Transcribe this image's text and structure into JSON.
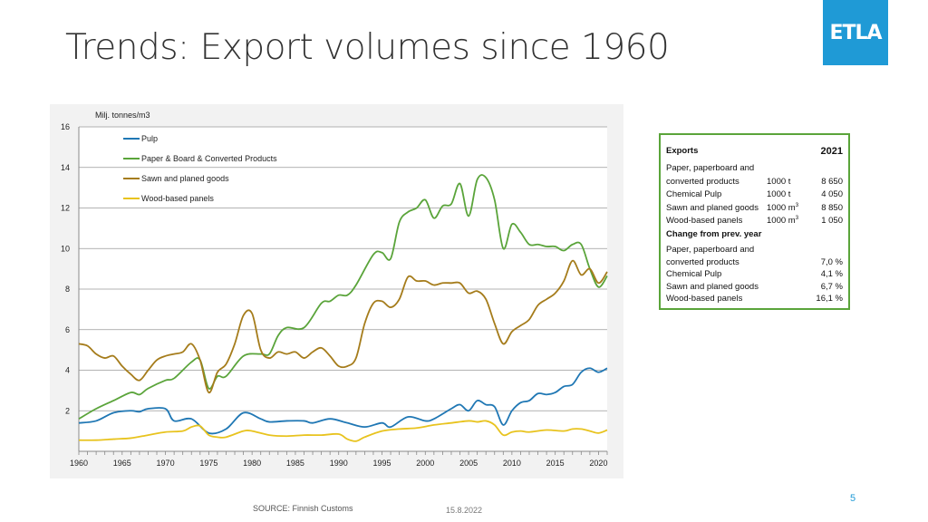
{
  "slide": {
    "title": "Trends: Export volumes since 1960",
    "logo": "ETLA",
    "source": "SOURCE: Finnish Customs",
    "date": "15.8.2022",
    "page": "5"
  },
  "chart_data": {
    "type": "line",
    "title": "",
    "ylabel": "Milj. tonnes/m3",
    "xlabel": "",
    "xlim": [
      1960,
      2021
    ],
    "ylim": [
      0,
      16
    ],
    "yticks": [
      2,
      4,
      6,
      8,
      10,
      12,
      14,
      16
    ],
    "xticks": [
      1960,
      1965,
      1970,
      1975,
      1980,
      1985,
      1990,
      1995,
      2000,
      2005,
      2010,
      2015,
      2020
    ],
    "grid": "horizontal",
    "legend": "top-left",
    "series": [
      {
        "name": "Pulp",
        "color": "#1f77b4",
        "points": [
          [
            1960,
            1.4
          ],
          [
            1962,
            1.5
          ],
          [
            1964,
            1.9
          ],
          [
            1966,
            2.0
          ],
          [
            1967,
            1.95
          ],
          [
            1968,
            2.1
          ],
          [
            1970,
            2.1
          ],
          [
            1971,
            1.5
          ],
          [
            1973,
            1.6
          ],
          [
            1975,
            0.9
          ],
          [
            1977,
            1.1
          ],
          [
            1979,
            1.9
          ],
          [
            1981,
            1.6
          ],
          [
            1982,
            1.45
          ],
          [
            1984,
            1.5
          ],
          [
            1986,
            1.5
          ],
          [
            1987,
            1.4
          ],
          [
            1989,
            1.6
          ],
          [
            1991,
            1.4
          ],
          [
            1993,
            1.2
          ],
          [
            1995,
            1.4
          ],
          [
            1996,
            1.2
          ],
          [
            1998,
            1.7
          ],
          [
            2000,
            1.5
          ],
          [
            2001,
            1.6
          ],
          [
            2003,
            2.1
          ],
          [
            2004,
            2.3
          ],
          [
            2005,
            2.0
          ],
          [
            2006,
            2.5
          ],
          [
            2007,
            2.3
          ],
          [
            2008,
            2.2
          ],
          [
            2009,
            1.3
          ],
          [
            2010,
            2.0
          ],
          [
            2011,
            2.4
          ],
          [
            2012,
            2.5
          ],
          [
            2013,
            2.85
          ],
          [
            2014,
            2.8
          ],
          [
            2015,
            2.9
          ],
          [
            2016,
            3.2
          ],
          [
            2017,
            3.3
          ],
          [
            2018,
            3.9
          ],
          [
            2019,
            4.1
          ],
          [
            2020,
            3.9
          ],
          [
            2021,
            4.1
          ]
        ]
      },
      {
        "name": "Paper & Board & Converted Products",
        "color": "#5aa43a",
        "points": [
          [
            1960,
            1.6
          ],
          [
            1962,
            2.1
          ],
          [
            1964,
            2.5
          ],
          [
            1966,
            2.9
          ],
          [
            1967,
            2.8
          ],
          [
            1968,
            3.1
          ],
          [
            1970,
            3.5
          ],
          [
            1971,
            3.6
          ],
          [
            1973,
            4.4
          ],
          [
            1974,
            4.5
          ],
          [
            1975,
            3.1
          ],
          [
            1976,
            3.7
          ],
          [
            1977,
            3.7
          ],
          [
            1979,
            4.7
          ],
          [
            1981,
            4.8
          ],
          [
            1982,
            4.8
          ],
          [
            1983,
            5.7
          ],
          [
            1984,
            6.1
          ],
          [
            1986,
            6.1
          ],
          [
            1988,
            7.3
          ],
          [
            1989,
            7.4
          ],
          [
            1990,
            7.7
          ],
          [
            1991,
            7.7
          ],
          [
            1992,
            8.2
          ],
          [
            1994,
            9.7
          ],
          [
            1995,
            9.8
          ],
          [
            1996,
            9.5
          ],
          [
            1997,
            11.3
          ],
          [
            1998,
            11.8
          ],
          [
            1999,
            12.0
          ],
          [
            2000,
            12.4
          ],
          [
            2001,
            11.5
          ],
          [
            2002,
            12.1
          ],
          [
            2003,
            12.2
          ],
          [
            2004,
            13.2
          ],
          [
            2005,
            11.6
          ],
          [
            2006,
            13.4
          ],
          [
            2007,
            13.5
          ],
          [
            2008,
            12.4
          ],
          [
            2009,
            10.0
          ],
          [
            2010,
            11.2
          ],
          [
            2011,
            10.8
          ],
          [
            2012,
            10.2
          ],
          [
            2013,
            10.2
          ],
          [
            2014,
            10.1
          ],
          [
            2015,
            10.1
          ],
          [
            2016,
            9.9
          ],
          [
            2017,
            10.2
          ],
          [
            2018,
            10.2
          ],
          [
            2019,
            9.0
          ],
          [
            2020,
            8.1
          ],
          [
            2021,
            8.65
          ]
        ]
      },
      {
        "name": "Sawn and planed goods",
        "color": "#a57c1b",
        "points": [
          [
            1960,
            5.3
          ],
          [
            1961,
            5.2
          ],
          [
            1962,
            4.8
          ],
          [
            1963,
            4.6
          ],
          [
            1964,
            4.7
          ],
          [
            1965,
            4.2
          ],
          [
            1966,
            3.8
          ],
          [
            1967,
            3.5
          ],
          [
            1968,
            4.0
          ],
          [
            1969,
            4.5
          ],
          [
            1970,
            4.7
          ],
          [
            1971,
            4.8
          ],
          [
            1972,
            4.9
          ],
          [
            1973,
            5.3
          ],
          [
            1974,
            4.5
          ],
          [
            1975,
            2.9
          ],
          [
            1976,
            3.9
          ],
          [
            1977,
            4.3
          ],
          [
            1978,
            5.3
          ],
          [
            1979,
            6.7
          ],
          [
            1980,
            6.8
          ],
          [
            1981,
            5.0
          ],
          [
            1982,
            4.6
          ],
          [
            1983,
            4.9
          ],
          [
            1984,
            4.8
          ],
          [
            1985,
            4.9
          ],
          [
            1986,
            4.6
          ],
          [
            1987,
            4.9
          ],
          [
            1988,
            5.1
          ],
          [
            1989,
            4.7
          ],
          [
            1990,
            4.2
          ],
          [
            1991,
            4.2
          ],
          [
            1992,
            4.6
          ],
          [
            1993,
            6.3
          ],
          [
            1994,
            7.3
          ],
          [
            1995,
            7.4
          ],
          [
            1996,
            7.1
          ],
          [
            1997,
            7.5
          ],
          [
            1998,
            8.6
          ],
          [
            1999,
            8.4
          ],
          [
            2000,
            8.4
          ],
          [
            2001,
            8.2
          ],
          [
            2002,
            8.3
          ],
          [
            2003,
            8.3
          ],
          [
            2004,
            8.3
          ],
          [
            2005,
            7.8
          ],
          [
            2006,
            7.9
          ],
          [
            2007,
            7.5
          ],
          [
            2008,
            6.3
          ],
          [
            2009,
            5.3
          ],
          [
            2010,
            5.9
          ],
          [
            2011,
            6.2
          ],
          [
            2012,
            6.5
          ],
          [
            2013,
            7.2
          ],
          [
            2014,
            7.5
          ],
          [
            2015,
            7.8
          ],
          [
            2016,
            8.4
          ],
          [
            2017,
            9.4
          ],
          [
            2018,
            8.7
          ],
          [
            2019,
            9.0
          ],
          [
            2020,
            8.3
          ],
          [
            2021,
            8.85
          ]
        ]
      },
      {
        "name": "Wood-based panels",
        "color": "#e8c31e",
        "points": [
          [
            1960,
            0.55
          ],
          [
            1962,
            0.55
          ],
          [
            1964,
            0.6
          ],
          [
            1966,
            0.65
          ],
          [
            1968,
            0.8
          ],
          [
            1970,
            0.95
          ],
          [
            1972,
            1.0
          ],
          [
            1973,
            1.2
          ],
          [
            1974,
            1.25
          ],
          [
            1975,
            0.8
          ],
          [
            1976,
            0.7
          ],
          [
            1977,
            0.7
          ],
          [
            1979,
            1.0
          ],
          [
            1980,
            1.0
          ],
          [
            1982,
            0.8
          ],
          [
            1984,
            0.75
          ],
          [
            1986,
            0.8
          ],
          [
            1988,
            0.8
          ],
          [
            1990,
            0.85
          ],
          [
            1991,
            0.6
          ],
          [
            1992,
            0.5
          ],
          [
            1993,
            0.7
          ],
          [
            1995,
            1.0
          ],
          [
            1997,
            1.1
          ],
          [
            1999,
            1.15
          ],
          [
            2001,
            1.3
          ],
          [
            2003,
            1.4
          ],
          [
            2005,
            1.5
          ],
          [
            2006,
            1.45
          ],
          [
            2007,
            1.5
          ],
          [
            2008,
            1.3
          ],
          [
            2009,
            0.8
          ],
          [
            2010,
            0.95
          ],
          [
            2011,
            1.0
          ],
          [
            2012,
            0.95
          ],
          [
            2014,
            1.05
          ],
          [
            2016,
            1.0
          ],
          [
            2017,
            1.1
          ],
          [
            2018,
            1.1
          ],
          [
            2019,
            1.0
          ],
          [
            2020,
            0.9
          ],
          [
            2021,
            1.05
          ]
        ]
      }
    ]
  },
  "summary": {
    "exports_label": "Exports",
    "year": "2021",
    "rows": [
      {
        "label": "Paper, paperboard and",
        "unit": "",
        "value": ""
      },
      {
        "label": "converted products",
        "unit": "1000 t",
        "value": "8 650"
      },
      {
        "label": "Chemical Pulp",
        "unit": "1000 t",
        "value": "4 050"
      },
      {
        "label": "Sawn and planed goods",
        "unit": "1000 m",
        "unit_sup": "3",
        "value": "8 850"
      },
      {
        "label": "Wood-based panels",
        "unit": "1000 m",
        "unit_sup": "3",
        "value": "1 050"
      }
    ],
    "change_label": "Change from prev. year",
    "change_rows": [
      {
        "label": "Paper, paperboard and",
        "value": ""
      },
      {
        "label": "converted products",
        "value": "7,0 %"
      },
      {
        "label": "Chemical Pulp",
        "value": "4,1 %"
      },
      {
        "label": "Sawn and planed goods",
        "value": "6,7 %"
      },
      {
        "label": "Wood-based panels",
        "value": "16,1 %"
      }
    ]
  }
}
